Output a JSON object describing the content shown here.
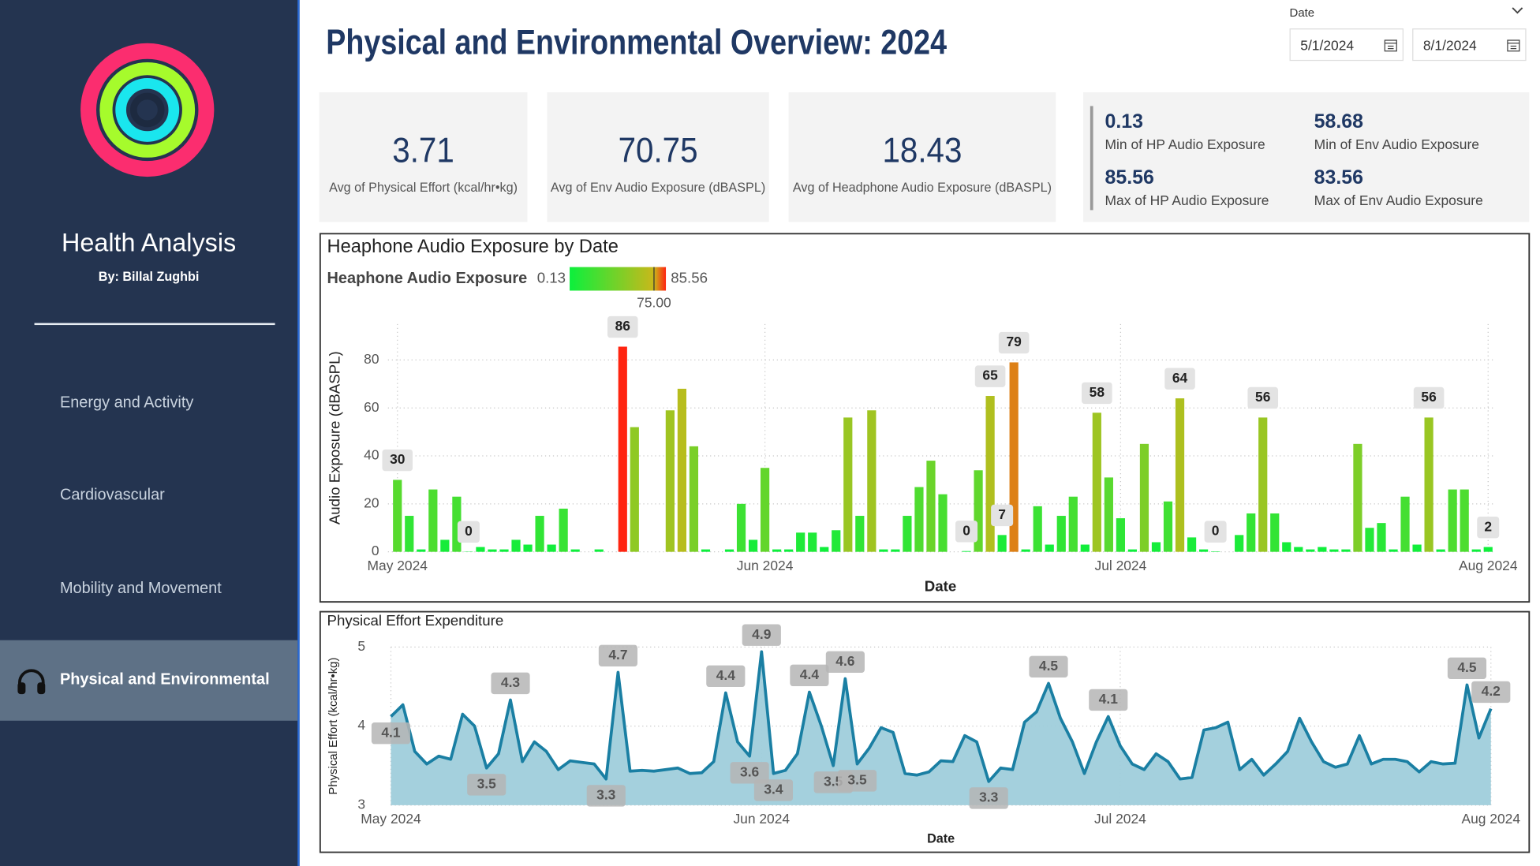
{
  "sidebar": {
    "title": "Health Analysis",
    "author": "By: Billal Zughbi",
    "nav": [
      "Energy and Activity",
      "Cardiovascular",
      "Mobility and Movement",
      "Physical and Environmental"
    ]
  },
  "header": {
    "title": "Physical and Environmental Overview: 2024"
  },
  "date_filter": {
    "label": "Date",
    "start": "5/1/2024",
    "end": "8/1/2024"
  },
  "kpis": [
    {
      "value": "3.71",
      "label": "Avg of Physical Effort (kcal/hr•kg)"
    },
    {
      "value": "70.75",
      "label": "Avg of Env Audio Exposure (dBASPL)"
    },
    {
      "value": "18.43",
      "label": "Avg of Headphone Audio Exposure (dBASPL)"
    }
  ],
  "stats": [
    {
      "value": "0.13",
      "label": "Min of HP Audio Exposure"
    },
    {
      "value": "58.68",
      "label": "Min of Env Audio Exposure"
    },
    {
      "value": "85.56",
      "label": "Max of HP Audio Exposure"
    },
    {
      "value": "83.56",
      "label": "Max of Env Audio Exposure"
    }
  ],
  "chart_data": [
    {
      "type": "bar",
      "title": "Heaphone Audio Exposure by Date",
      "x_label": "Date",
      "y_label": "Audio Exposure (dBASPL)",
      "color_scale": {
        "title": "Heaphone Audio Exposure",
        "min": 0.13,
        "max": 85.56,
        "mid": {
          "value": 75,
          "label": "75.00"
        },
        "colors": [
          "#0bf03c",
          "#c9b81a",
          "#ff2410"
        ]
      },
      "x": [
        0,
        1,
        2,
        3,
        4,
        5,
        6,
        7,
        8,
        9,
        10,
        11,
        12,
        13,
        14,
        15,
        17,
        19,
        20,
        23,
        24,
        25,
        26,
        28,
        29,
        30,
        31,
        32,
        33,
        34,
        35,
        36,
        37,
        38,
        39,
        40,
        41,
        42,
        43,
        44,
        45,
        46,
        48,
        49,
        50,
        51,
        52,
        53,
        54,
        55,
        56,
        57,
        58,
        59,
        60,
        61,
        62,
        63,
        64,
        65,
        66,
        67,
        68,
        69,
        71,
        72,
        73,
        74,
        75,
        76,
        77,
        78,
        79,
        80,
        81,
        82,
        83,
        84,
        85,
        86,
        87,
        88,
        89,
        90,
        91,
        92
      ],
      "values": [
        30,
        15,
        1,
        26,
        5,
        23,
        0.13,
        2,
        1,
        1,
        5,
        3,
        15,
        3,
        18,
        1,
        1,
        85.56,
        52,
        59,
        68,
        44,
        1,
        1,
        20,
        5,
        35,
        1,
        1,
        8,
        8,
        2,
        9,
        56,
        15,
        59,
        1,
        1,
        15,
        27,
        38,
        24,
        0.3,
        34,
        65,
        7,
        79,
        1,
        19,
        3,
        15,
        23,
        3,
        58,
        31,
        14,
        1,
        45,
        4,
        21,
        64,
        6,
        1,
        0.2,
        7,
        16,
        56,
        16,
        4,
        2,
        1,
        2,
        1,
        1,
        45,
        10,
        12,
        1,
        23,
        3,
        56,
        1,
        26,
        26,
        1,
        2
      ],
      "value_labels": [
        "30",
        null,
        null,
        null,
        null,
        null,
        "0",
        null,
        null,
        null,
        null,
        null,
        null,
        null,
        null,
        null,
        null,
        "86",
        null,
        null,
        null,
        null,
        null,
        null,
        null,
        null,
        null,
        null,
        null,
        null,
        null,
        null,
        null,
        null,
        null,
        null,
        null,
        null,
        null,
        null,
        null,
        null,
        "0",
        null,
        "65",
        "7",
        "79",
        null,
        null,
        null,
        null,
        null,
        null,
        "58",
        null,
        null,
        null,
        null,
        null,
        null,
        "64",
        null,
        null,
        "0",
        null,
        null,
        "56",
        null,
        null,
        null,
        null,
        null,
        null,
        null,
        null,
        null,
        null,
        null,
        null,
        null,
        "56",
        null,
        null,
        null,
        null,
        "2"
      ],
      "xlim": [
        -0.8,
        92.4
      ],
      "xticks": [
        {
          "value": 0,
          "label": "May 2024"
        },
        {
          "value": 31,
          "label": "Jun 2024"
        },
        {
          "value": 61,
          "label": "Jul 2024"
        },
        {
          "value": 92,
          "label": "Aug 2024"
        }
      ],
      "ylim": [
        0,
        95
      ],
      "yticks": [
        0,
        20,
        40,
        60,
        80
      ],
      "grid": true
    },
    {
      "type": "area",
      "title": "Physical Effort Expenditure",
      "x_label": "Date",
      "y_label": "Physical Effort (kcal/hr•kg)",
      "color": "#1a7fa3",
      "fill": "#9fcddb",
      "x": [
        0,
        1,
        2,
        3,
        4,
        5,
        6,
        7,
        8,
        9,
        10,
        11,
        12,
        13,
        14,
        15,
        16,
        17,
        18,
        19,
        20,
        21,
        22,
        23,
        24,
        25,
        26,
        27,
        28,
        29,
        30,
        31,
        32,
        33,
        34,
        35,
        36,
        37,
        38,
        39,
        40,
        41,
        42,
        43,
        44,
        45,
        46,
        47,
        48,
        49,
        50,
        51,
        52,
        53,
        54,
        55,
        56,
        57,
        58,
        59,
        60,
        61,
        62,
        63,
        64,
        65,
        66,
        67,
        68,
        69,
        70,
        71,
        72,
        73,
        74,
        75,
        76,
        77,
        78,
        79,
        80,
        81,
        82,
        83,
        84,
        85,
        86,
        87,
        88,
        89,
        90,
        91,
        92
      ],
      "values": [
        4.12,
        4.27,
        3.68,
        3.52,
        3.62,
        3.58,
        4.15,
        4.0,
        3.47,
        3.65,
        4.33,
        3.55,
        3.8,
        3.68,
        3.45,
        3.56,
        3.54,
        3.52,
        3.33,
        4.68,
        3.43,
        3.44,
        3.43,
        3.45,
        3.47,
        3.4,
        3.41,
        3.55,
        4.42,
        3.8,
        3.62,
        4.94,
        3.4,
        3.44,
        3.65,
        4.43,
        4.0,
        3.5,
        4.6,
        3.52,
        3.72,
        3.98,
        3.92,
        3.4,
        3.38,
        3.42,
        3.56,
        3.55,
        3.88,
        3.8,
        3.3,
        3.47,
        3.45,
        4.05,
        4.18,
        4.54,
        4.1,
        3.8,
        3.4,
        3.8,
        4.12,
        3.75,
        3.52,
        3.45,
        3.65,
        3.55,
        3.33,
        3.35,
        3.95,
        3.98,
        4.05,
        3.45,
        3.58,
        3.38,
        3.52,
        3.68,
        4.1,
        3.8,
        3.55,
        3.48,
        3.52,
        3.88,
        3.52,
        3.58,
        3.58,
        3.55,
        3.42,
        3.55,
        3.52,
        3.53,
        4.52,
        3.85,
        4.22
      ],
      "value_labels": [
        "4.1",
        null,
        null,
        null,
        null,
        null,
        null,
        null,
        "3.5",
        null,
        "4.3",
        null,
        null,
        null,
        null,
        null,
        null,
        null,
        "3.3",
        "4.7",
        null,
        null,
        null,
        null,
        null,
        null,
        null,
        null,
        "4.4",
        null,
        "3.6",
        "4.9",
        "3.4",
        null,
        null,
        "4.4",
        null,
        "3.5",
        "4.6",
        "3.5",
        null,
        null,
        null,
        null,
        null,
        null,
        null,
        null,
        null,
        null,
        "3.3",
        null,
        null,
        null,
        null,
        "4.5",
        null,
        null,
        null,
        null,
        "4.1",
        null,
        null,
        null,
        null,
        null,
        null,
        null,
        null,
        null,
        null,
        null,
        null,
        null,
        null,
        null,
        null,
        null,
        null,
        null,
        null,
        null,
        null,
        null,
        null,
        null,
        null,
        null,
        null,
        null,
        "4.5",
        null,
        "4.2"
      ],
      "xlim": [
        0,
        92
      ],
      "xticks": [
        {
          "value": 0,
          "label": "May 2024"
        },
        {
          "value": 31,
          "label": "Jun 2024"
        },
        {
          "value": 61,
          "label": "Jul 2024"
        },
        {
          "value": 92,
          "label": "Aug 2024"
        }
      ],
      "ylim": [
        3,
        5
      ],
      "yticks": [
        3,
        4,
        5
      ],
      "grid": true
    }
  ]
}
